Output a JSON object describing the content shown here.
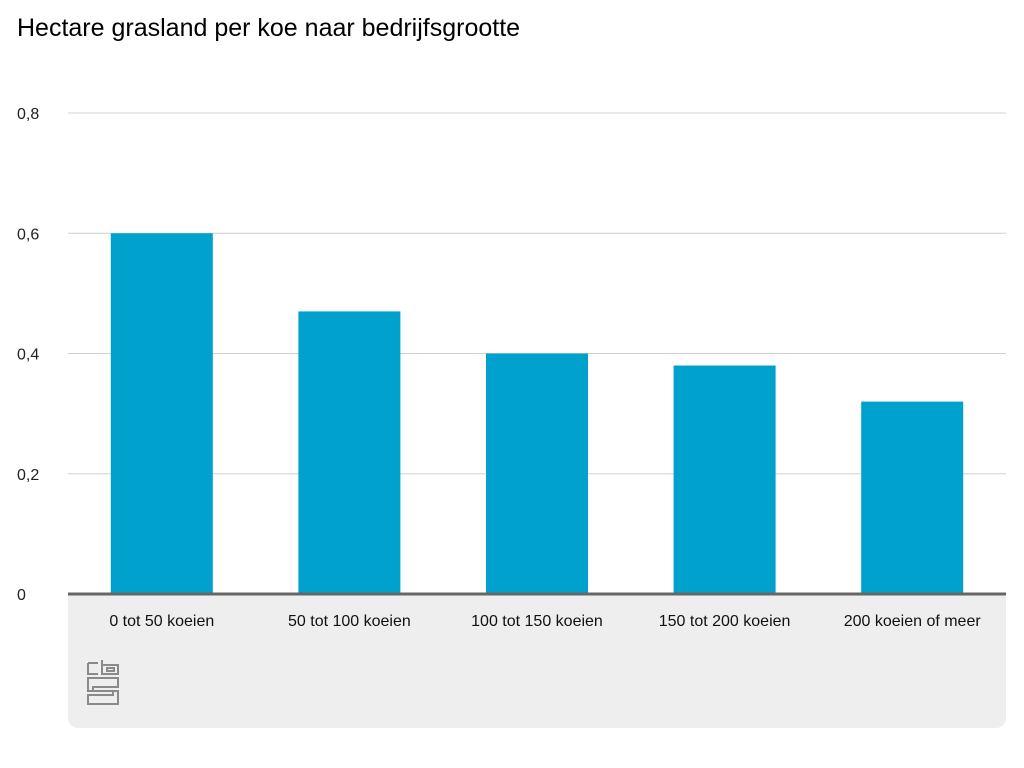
{
  "chart_data": {
    "type": "bar",
    "title": "Hectare grasland per koe naar bedrijfsgrootte",
    "categories": [
      "0 tot 50 koeien",
      "50 tot 100 koeien",
      "100 tot 150 koeien",
      "150 tot 200 koeien",
      "200 koeien of meer"
    ],
    "values": [
      0.6,
      0.47,
      0.4,
      0.38,
      0.32
    ],
    "xlabel": "",
    "ylabel": "",
    "ylim": [
      0,
      0.8
    ],
    "yticks": [
      0,
      0.2,
      0.4,
      0.6,
      0.8
    ],
    "ytick_labels": [
      "0",
      "0,2",
      "0,4",
      "0,6",
      "0,8"
    ],
    "grid": true,
    "bar_color": "#00a1cd",
    "legend": "none"
  },
  "logo": {
    "text": "cbs"
  }
}
